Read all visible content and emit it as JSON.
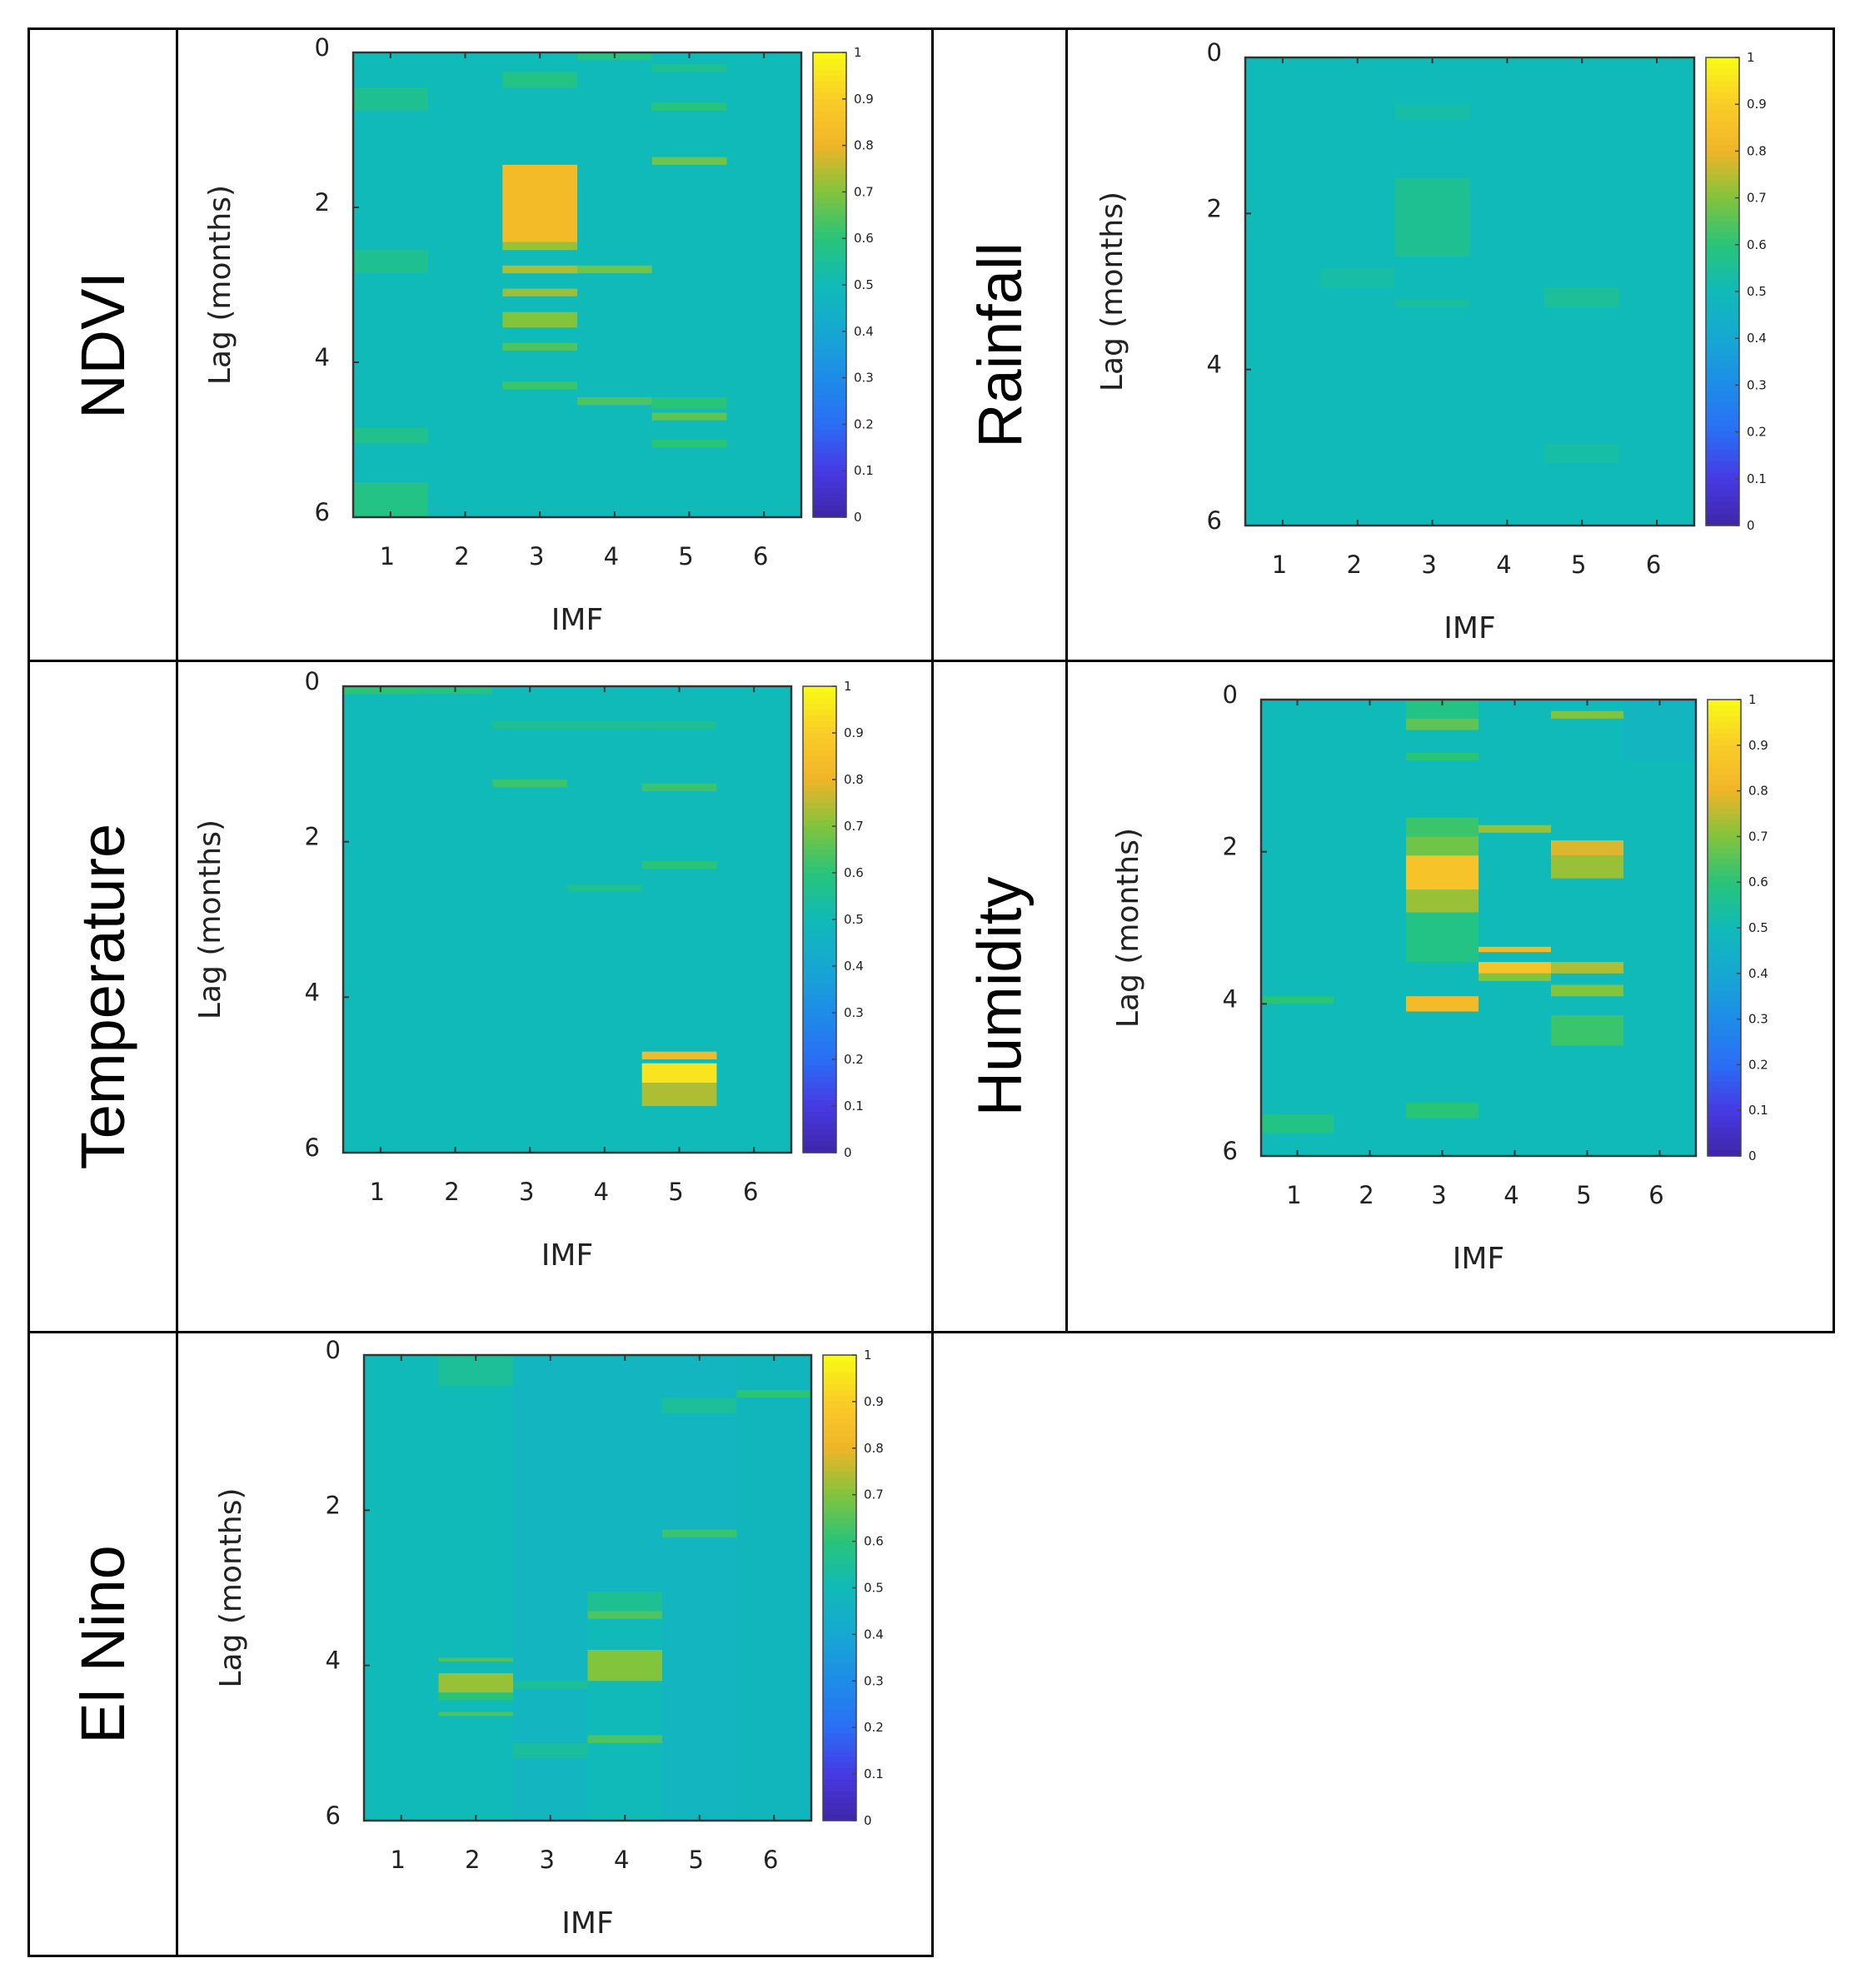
{
  "layout_rows": [
    {
      "label": "NDVI",
      "panel": 0
    },
    {
      "label": "Rainfall",
      "panel": 1
    },
    {
      "label": "Temperature",
      "panel": 2
    },
    {
      "label": "Humidity",
      "panel": 3
    },
    {
      "label": "El Nino",
      "panel": 4
    }
  ],
  "colors": {
    "grid_border": "#000000",
    "axis": "#333333",
    "tick_text": "#222222"
  },
  "chart_data": [
    {
      "type": "heatmap",
      "name": "NDVI",
      "xlabel": "IMF",
      "ylabel": "Lag (months)",
      "x_ticks": [
        "1",
        "2",
        "3",
        "4",
        "5",
        "6"
      ],
      "y_ticks": [
        "0",
        "2",
        "4",
        "6"
      ],
      "ylim": [
        0,
        6
      ],
      "clim": [
        0,
        1
      ],
      "colorbar_ticks": [
        "0",
        "0.1",
        "0.2",
        "0.3",
        "0.4",
        "0.5",
        "0.6",
        "0.7",
        "0.8",
        "0.9",
        "1"
      ],
      "base_value": 0.5,
      "cells": [
        {
          "imf": 1,
          "lag_from": 0.45,
          "lag_to": 0.75,
          "value": 0.56
        },
        {
          "imf": 1,
          "lag_from": 2.55,
          "lag_to": 2.85,
          "value": 0.56
        },
        {
          "imf": 1,
          "lag_from": 4.85,
          "lag_to": 5.05,
          "value": 0.57
        },
        {
          "imf": 1,
          "lag_from": 5.55,
          "lag_to": 6.0,
          "value": 0.58
        },
        {
          "imf": 3,
          "lag_from": 0.25,
          "lag_to": 0.45,
          "value": 0.58
        },
        {
          "imf": 3,
          "lag_from": 1.45,
          "lag_to": 2.45,
          "value": 0.83
        },
        {
          "imf": 3,
          "lag_from": 2.45,
          "lag_to": 2.55,
          "value": 0.72
        },
        {
          "imf": 3,
          "lag_from": 2.75,
          "lag_to": 2.85,
          "value": 0.74
        },
        {
          "imf": 3,
          "lag_from": 3.05,
          "lag_to": 3.15,
          "value": 0.72
        },
        {
          "imf": 3,
          "lag_from": 3.35,
          "lag_to": 3.55,
          "value": 0.7
        },
        {
          "imf": 3,
          "lag_from": 3.75,
          "lag_to": 3.85,
          "value": 0.64
        },
        {
          "imf": 3,
          "lag_from": 4.25,
          "lag_to": 4.35,
          "value": 0.62
        },
        {
          "imf": 4,
          "lag_from": 0.0,
          "lag_to": 0.1,
          "value": 0.58
        },
        {
          "imf": 4,
          "lag_from": 2.75,
          "lag_to": 2.85,
          "value": 0.68
        },
        {
          "imf": 4,
          "lag_from": 4.45,
          "lag_to": 4.55,
          "value": 0.64
        },
        {
          "imf": 5,
          "lag_from": 0.15,
          "lag_to": 0.25,
          "value": 0.56
        },
        {
          "imf": 5,
          "lag_from": 0.65,
          "lag_to": 0.75,
          "value": 0.6
        },
        {
          "imf": 5,
          "lag_from": 1.35,
          "lag_to": 1.45,
          "value": 0.68
        },
        {
          "imf": 5,
          "lag_from": 4.45,
          "lag_to": 4.6,
          "value": 0.6
        },
        {
          "imf": 5,
          "lag_from": 4.65,
          "lag_to": 4.75,
          "value": 0.66
        },
        {
          "imf": 5,
          "lag_from": 5.0,
          "lag_to": 5.1,
          "value": 0.6
        }
      ]
    },
    {
      "type": "heatmap",
      "name": "Rainfall",
      "xlabel": "IMF",
      "ylabel": "Lag (months)",
      "x_ticks": [
        "1",
        "2",
        "3",
        "4",
        "5",
        "6"
      ],
      "y_ticks": [
        "0",
        "2",
        "4",
        "6"
      ],
      "ylim": [
        0,
        6
      ],
      "clim": [
        0,
        1
      ],
      "colorbar_ticks": [
        "0",
        "0.1",
        "0.2",
        "0.3",
        "0.4",
        "0.5",
        "0.6",
        "0.7",
        "0.8",
        "0.9",
        "1"
      ],
      "base_value": 0.5,
      "cells": [
        {
          "imf": 2,
          "lag_from": 2.7,
          "lag_to": 2.95,
          "value": 0.53
        },
        {
          "imf": 3,
          "lag_from": 0.6,
          "lag_to": 0.8,
          "value": 0.53
        },
        {
          "imf": 3,
          "lag_from": 1.55,
          "lag_to": 2.55,
          "value": 0.56
        },
        {
          "imf": 3,
          "lag_from": 3.1,
          "lag_to": 3.2,
          "value": 0.54
        },
        {
          "imf": 5,
          "lag_from": 2.95,
          "lag_to": 3.2,
          "value": 0.55
        },
        {
          "imf": 5,
          "lag_from": 4.95,
          "lag_to": 5.2,
          "value": 0.53
        }
      ]
    },
    {
      "type": "heatmap",
      "name": "Temperature",
      "xlabel": "IMF",
      "ylabel": "Lag (months)",
      "x_ticks": [
        "1",
        "2",
        "3",
        "4",
        "5",
        "6"
      ],
      "y_ticks": [
        "0",
        "2",
        "4",
        "6"
      ],
      "ylim": [
        0,
        6
      ],
      "clim": [
        0,
        1
      ],
      "colorbar_ticks": [
        "0",
        "0.1",
        "0.2",
        "0.3",
        "0.4",
        "0.5",
        "0.6",
        "0.7",
        "0.8",
        "0.9",
        "1"
      ],
      "base_value": 0.5,
      "cells": [
        {
          "imf": 1,
          "lag_from": 0.0,
          "lag_to": 0.1,
          "value": 0.6
        },
        {
          "imf": 2,
          "lag_from": 0.0,
          "lag_to": 0.1,
          "value": 0.58
        },
        {
          "imf": 3,
          "lag_from": 0.45,
          "lag_to": 0.55,
          "value": 0.56
        },
        {
          "imf": 3,
          "lag_from": 1.2,
          "lag_to": 1.3,
          "value": 0.62
        },
        {
          "imf": 4,
          "lag_from": 0.45,
          "lag_to": 0.55,
          "value": 0.56
        },
        {
          "imf": 4,
          "lag_from": 2.55,
          "lag_to": 2.65,
          "value": 0.56
        },
        {
          "imf": 5,
          "lag_from": 0.45,
          "lag_to": 0.55,
          "value": 0.56
        },
        {
          "imf": 5,
          "lag_from": 1.25,
          "lag_to": 1.35,
          "value": 0.62
        },
        {
          "imf": 5,
          "lag_from": 2.25,
          "lag_to": 2.35,
          "value": 0.6
        },
        {
          "imf": 5,
          "lag_from": 4.7,
          "lag_to": 4.8,
          "value": 0.82
        },
        {
          "imf": 5,
          "lag_from": 4.85,
          "lag_to": 5.1,
          "value": 0.95
        },
        {
          "imf": 5,
          "lag_from": 5.1,
          "lag_to": 5.4,
          "value": 0.74
        }
      ]
    },
    {
      "type": "heatmap",
      "name": "Humidity",
      "xlabel": "IMF",
      "ylabel": "Lag (months)",
      "x_ticks": [
        "1",
        "2",
        "3",
        "4",
        "5",
        "6"
      ],
      "y_ticks": [
        "0",
        "2",
        "4",
        "6"
      ],
      "ylim": [
        0,
        6
      ],
      "clim": [
        0,
        1
      ],
      "colorbar_ticks": [
        "0",
        "0.1",
        "0.2",
        "0.3",
        "0.4",
        "0.5",
        "0.6",
        "0.7",
        "0.8",
        "0.9",
        "1"
      ],
      "base_value": 0.5,
      "cells": [
        {
          "imf": 1,
          "lag_from": 3.9,
          "lag_to": 4.0,
          "value": 0.6
        },
        {
          "imf": 1,
          "lag_from": 5.45,
          "lag_to": 5.7,
          "value": 0.58
        },
        {
          "imf": 3,
          "lag_from": 0.0,
          "lag_to": 0.25,
          "value": 0.58
        },
        {
          "imf": 3,
          "lag_from": 0.25,
          "lag_to": 0.4,
          "value": 0.66
        },
        {
          "imf": 3,
          "lag_from": 0.7,
          "lag_to": 0.8,
          "value": 0.6
        },
        {
          "imf": 3,
          "lag_from": 1.55,
          "lag_to": 1.8,
          "value": 0.62
        },
        {
          "imf": 3,
          "lag_from": 1.8,
          "lag_to": 2.05,
          "value": 0.68
        },
        {
          "imf": 3,
          "lag_from": 2.05,
          "lag_to": 2.5,
          "value": 0.86
        },
        {
          "imf": 3,
          "lag_from": 2.5,
          "lag_to": 2.8,
          "value": 0.72
        },
        {
          "imf": 3,
          "lag_from": 2.8,
          "lag_to": 3.45,
          "value": 0.58
        },
        {
          "imf": 3,
          "lag_from": 3.9,
          "lag_to": 4.1,
          "value": 0.83
        },
        {
          "imf": 3,
          "lag_from": 5.3,
          "lag_to": 5.5,
          "value": 0.6
        },
        {
          "imf": 4,
          "lag_from": 1.65,
          "lag_to": 1.75,
          "value": 0.72
        },
        {
          "imf": 4,
          "lag_from": 3.25,
          "lag_to": 3.32,
          "value": 0.82
        },
        {
          "imf": 4,
          "lag_from": 3.45,
          "lag_to": 3.6,
          "value": 0.86
        },
        {
          "imf": 4,
          "lag_from": 3.6,
          "lag_to": 3.7,
          "value": 0.7
        },
        {
          "imf": 5,
          "lag_from": 0.15,
          "lag_to": 0.25,
          "value": 0.7
        },
        {
          "imf": 5,
          "lag_from": 1.85,
          "lag_to": 2.05,
          "value": 0.78
        },
        {
          "imf": 5,
          "lag_from": 2.05,
          "lag_to": 2.35,
          "value": 0.72
        },
        {
          "imf": 5,
          "lag_from": 3.45,
          "lag_to": 3.6,
          "value": 0.74
        },
        {
          "imf": 5,
          "lag_from": 3.75,
          "lag_to": 3.9,
          "value": 0.7
        },
        {
          "imf": 5,
          "lag_from": 4.15,
          "lag_to": 4.55,
          "value": 0.62
        },
        {
          "imf": 6,
          "lag_from": 0.0,
          "lag_to": 0.8,
          "value": 0.47
        }
      ]
    },
    {
      "type": "heatmap",
      "name": "El Nino",
      "xlabel": "IMF",
      "ylabel": "Lag (months)",
      "x_ticks": [
        "1",
        "2",
        "3",
        "4",
        "5",
        "6"
      ],
      "y_ticks": [
        "0",
        "2",
        "4",
        "6"
      ],
      "ylim": [
        0,
        6
      ],
      "clim": [
        0,
        1
      ],
      "colorbar_ticks": [
        "0",
        "0.1",
        "0.2",
        "0.3",
        "0.4",
        "0.5",
        "0.6",
        "0.7",
        "0.8",
        "0.9",
        "1"
      ],
      "base_value": 0.5,
      "cells": [
        {
          "imf": 2,
          "lag_from": 0.0,
          "lag_to": 0.4,
          "value": 0.55
        },
        {
          "imf": 2,
          "lag_from": 3.9,
          "lag_to": 3.95,
          "value": 0.64
        },
        {
          "imf": 2,
          "lag_from": 4.1,
          "lag_to": 4.35,
          "value": 0.72
        },
        {
          "imf": 2,
          "lag_from": 4.35,
          "lag_to": 4.45,
          "value": 0.6
        },
        {
          "imf": 2,
          "lag_from": 4.6,
          "lag_to": 4.65,
          "value": 0.64
        },
        {
          "imf": 3,
          "lag_from": 0.0,
          "lag_to": 6.0,
          "value": 0.47
        },
        {
          "imf": 3,
          "lag_from": 4.2,
          "lag_to": 4.3,
          "value": 0.55
        },
        {
          "imf": 3,
          "lag_from": 5.0,
          "lag_to": 5.2,
          "value": 0.54
        },
        {
          "imf": 4,
          "lag_from": 0.0,
          "lag_to": 3.05,
          "value": 0.47
        },
        {
          "imf": 4,
          "lag_from": 3.05,
          "lag_to": 3.3,
          "value": 0.56
        },
        {
          "imf": 4,
          "lag_from": 3.3,
          "lag_to": 3.4,
          "value": 0.64
        },
        {
          "imf": 4,
          "lag_from": 3.8,
          "lag_to": 4.2,
          "value": 0.7
        },
        {
          "imf": 4,
          "lag_from": 4.9,
          "lag_to": 5.0,
          "value": 0.64
        },
        {
          "imf": 5,
          "lag_from": 0.0,
          "lag_to": 6.0,
          "value": 0.47
        },
        {
          "imf": 5,
          "lag_from": 0.55,
          "lag_to": 0.75,
          "value": 0.55
        },
        {
          "imf": 5,
          "lag_from": 2.25,
          "lag_to": 2.35,
          "value": 0.62
        },
        {
          "imf": 6,
          "lag_from": 0.0,
          "lag_to": 6.0,
          "value": 0.48
        },
        {
          "imf": 6,
          "lag_from": 0.45,
          "lag_to": 0.55,
          "value": 0.6
        }
      ]
    }
  ]
}
